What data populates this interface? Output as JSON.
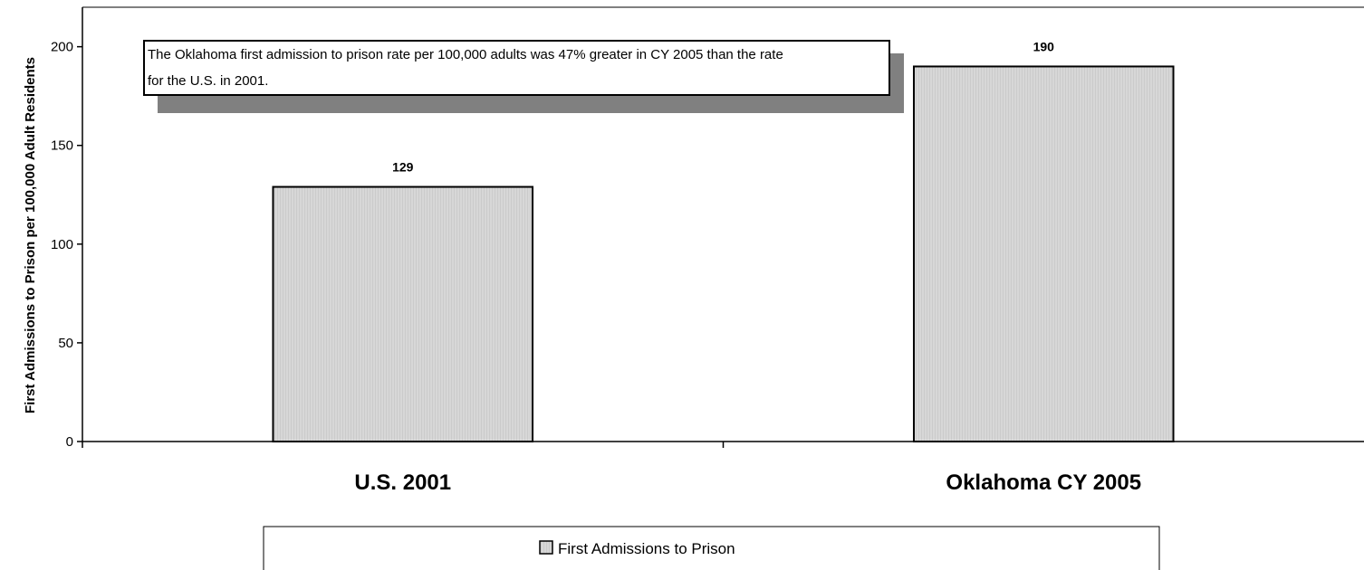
{
  "chart_data": {
    "type": "bar",
    "categories": [
      "U.S. 2001",
      "Oklahoma CY 2005"
    ],
    "series": [
      {
        "name": "First Admissions to Prison",
        "values": [
          129,
          190
        ]
      }
    ],
    "data_labels": [
      "129",
      "190"
    ],
    "ylabel": "First Admissions to Prison per 100,000 Adult Residents",
    "ylim": [
      0,
      220
    ],
    "yticks": [
      0,
      50,
      100,
      150,
      200
    ],
    "grid": false,
    "legend_position": "bottom",
    "bar_color": "#d4d4d4",
    "annotation": {
      "lines": [
        "The Oklahoma first admission to prison rate per 100,000 adults was 47% greater in CY 2005 than the rate",
        "for the U.S. in 2001."
      ]
    }
  }
}
